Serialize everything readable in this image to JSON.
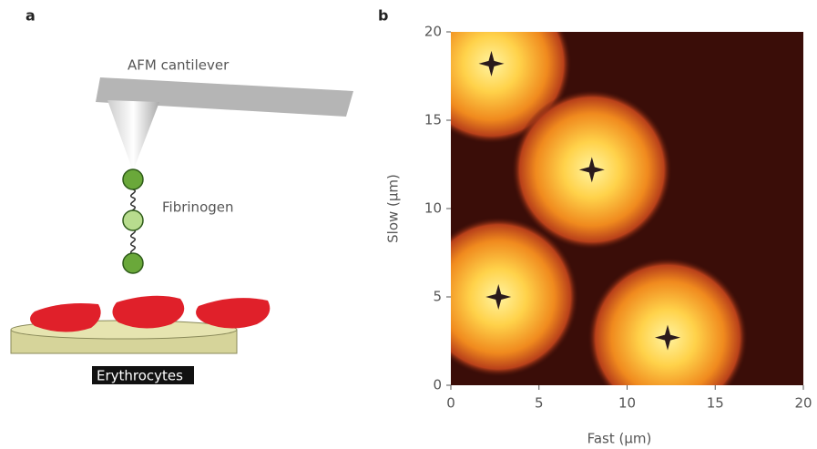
{
  "panel_a": {
    "label": "a",
    "cantilever": "AFM cantilever",
    "molecule": "Fibrinogen",
    "cells": "Erythrocytes"
  },
  "chart_data": {
    "type": "scatter",
    "panel_label": "b",
    "x_label": "Fast (µm)",
    "y_label": "Slow (µm)",
    "x": [
      2.3,
      8,
      2.7,
      12.3
    ],
    "y": [
      18.2,
      12.2,
      5,
      2.7
    ],
    "color": "#2a1a1c",
    "xlim": [
      0,
      20
    ],
    "ylim": [
      0,
      20
    ],
    "xticks": [
      0,
      5,
      10,
      15,
      20
    ],
    "yticks": [
      0,
      5,
      10,
      15,
      20
    ]
  }
}
